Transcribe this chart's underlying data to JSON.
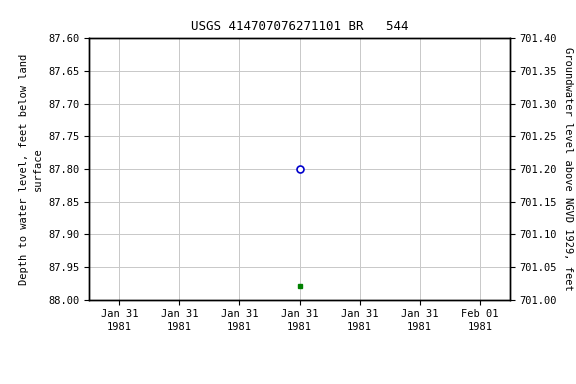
{
  "title": "USGS 414707076271101 BR   544",
  "ylabel_left": "Depth to water level, feet below land\nsurface",
  "ylabel_right": "Groundwater level above NGVD 1929, feet",
  "ylim_left": [
    88.0,
    87.6
  ],
  "ylim_right": [
    701.0,
    701.4
  ],
  "yticks_left": [
    87.6,
    87.65,
    87.7,
    87.75,
    87.8,
    87.85,
    87.9,
    87.95,
    88.0
  ],
  "yticks_right": [
    701.4,
    701.35,
    701.3,
    701.25,
    701.2,
    701.15,
    701.1,
    701.05,
    701.0
  ],
  "data_point_circle": {
    "date": "1981-01-31",
    "value": 87.8
  },
  "data_point_square": {
    "date": "1981-01-31",
    "value": 87.98
  },
  "circle_color": "#0000cc",
  "square_color": "#008000",
  "background_color": "#ffffff",
  "grid_color": "#c8c8c8",
  "x_tick_labels": [
    "Jan 31\n1981",
    "Jan 31\n1981",
    "Jan 31\n1981",
    "Jan 31\n1981",
    "Jan 31\n1981",
    "Jan 31\n1981",
    "Feb 01\n1981"
  ],
  "legend_color": "#008000",
  "title_fontsize": 9,
  "axis_fontsize": 7.5,
  "tick_fontsize": 7.5,
  "font_family": "monospace"
}
